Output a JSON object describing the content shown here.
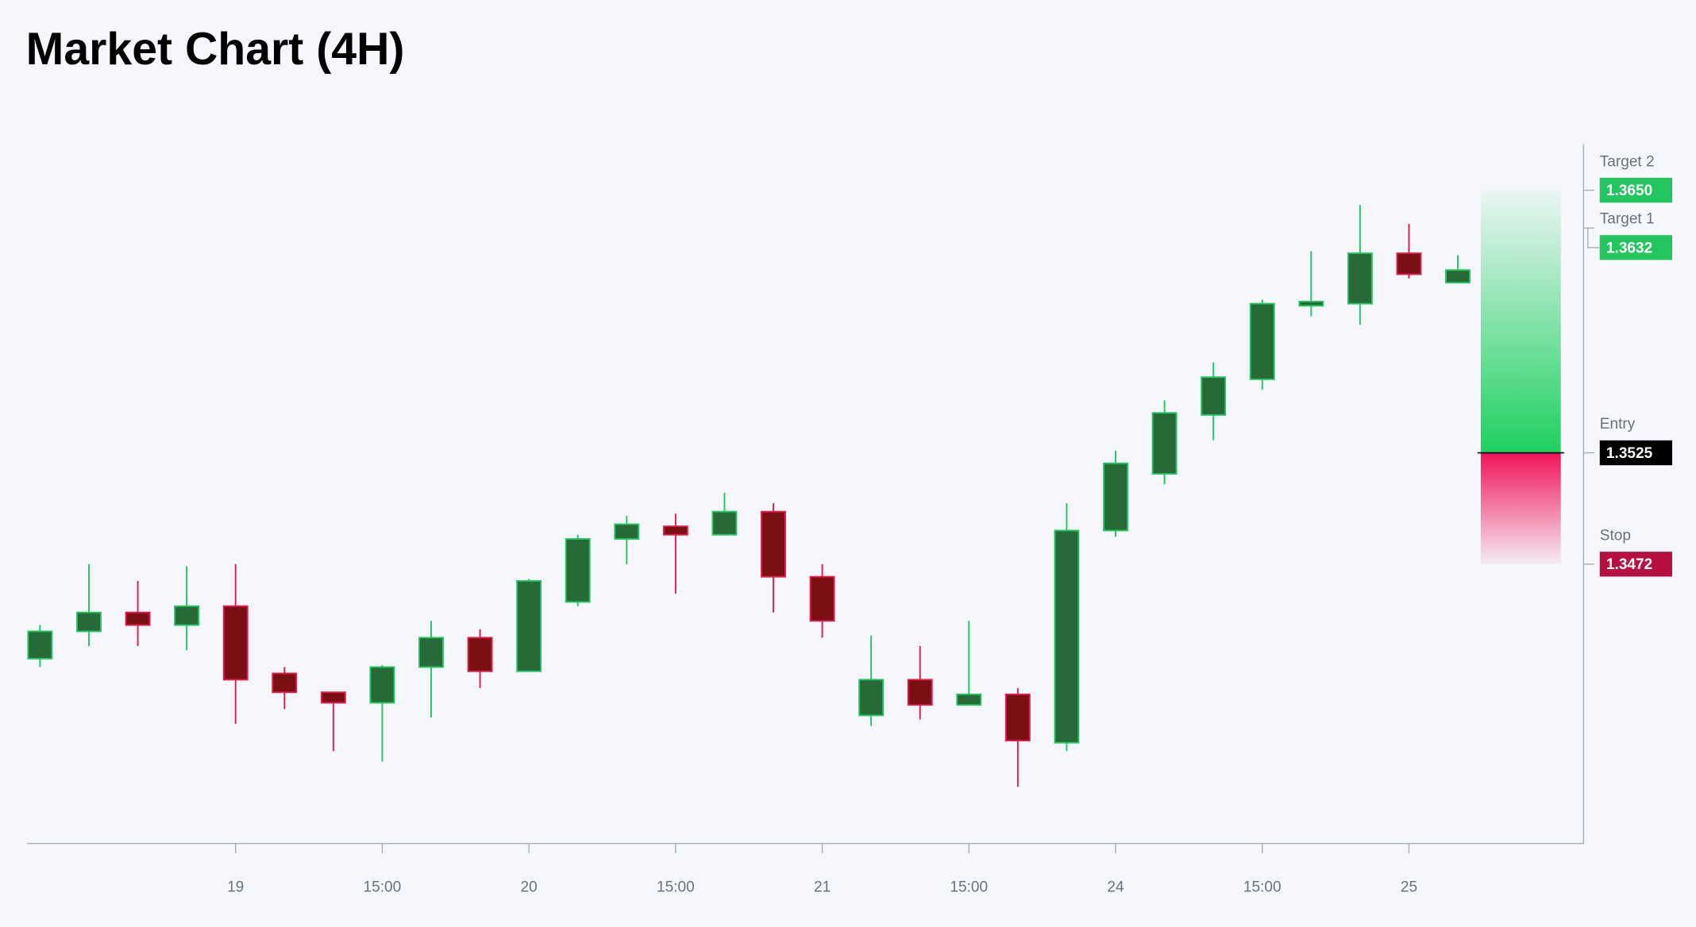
{
  "chart_data": {
    "type": "candlestick",
    "title": "Market Chart (4H)",
    "categories": [
      null,
      null,
      null,
      null,
      "19",
      null,
      null,
      "15:00",
      null,
      null,
      "20",
      null,
      null,
      "15:00",
      null,
      null,
      "21",
      null,
      null,
      "15:00",
      null,
      null,
      "24",
      null,
      null,
      "15:00",
      null,
      null,
      "25",
      null
    ],
    "open": [
      1.3427,
      1.344,
      1.3449,
      1.3443,
      1.3452,
      1.342,
      1.3411,
      1.3406,
      1.3423,
      1.3437,
      1.3421,
      1.3454,
      1.3484,
      1.349,
      1.3486,
      1.3497,
      1.3466,
      1.34,
      1.3417,
      1.3405,
      1.341,
      1.3387,
      1.3488,
      1.3515,
      1.3543,
      1.356,
      1.3595,
      1.3596,
      1.362,
      1.3606
    ],
    "high": [
      1.3443,
      1.3472,
      1.3464,
      1.3471,
      1.3472,
      1.3423,
      1.3411,
      1.3424,
      1.3445,
      1.3441,
      1.3465,
      1.3486,
      1.3495,
      1.3496,
      1.3506,
      1.3501,
      1.3472,
      1.3438,
      1.3433,
      1.3445,
      1.3413,
      1.3501,
      1.3526,
      1.355,
      1.3568,
      1.3598,
      1.3621,
      1.3643,
      1.3634,
      1.3619
    ],
    "low": [
      1.3423,
      1.3433,
      1.3433,
      1.3431,
      1.3396,
      1.3403,
      1.3383,
      1.3378,
      1.3399,
      1.3413,
      1.3421,
      1.3452,
      1.3472,
      1.3458,
      1.3486,
      1.3449,
      1.3437,
      1.3395,
      1.3398,
      1.3405,
      1.3366,
      1.3383,
      1.3485,
      1.351,
      1.3531,
      1.3555,
      1.359,
      1.3586,
      1.3608,
      1.3606
    ],
    "close": [
      1.344,
      1.3449,
      1.3443,
      1.3452,
      1.3417,
      1.3411,
      1.3406,
      1.3423,
      1.3437,
      1.3421,
      1.3464,
      1.3484,
      1.3491,
      1.3486,
      1.3497,
      1.3466,
      1.3445,
      1.3417,
      1.3405,
      1.341,
      1.3388,
      1.3488,
      1.352,
      1.3544,
      1.3561,
      1.3596,
      1.3597,
      1.362,
      1.361,
      1.3612
    ],
    "ylim": [
      1.3339,
      1.3672
    ],
    "up_color": "#22c55e",
    "up_fill": "#276a37",
    "down_color": "#e11d48",
    "down_fill": "#7a0f14",
    "levels": [
      {
        "name": "Target 2",
        "value": 1.365,
        "label": "1.3650",
        "color": "#22c55e"
      },
      {
        "name": "Target 1",
        "value": 1.3632,
        "label": "1.3632",
        "color": "#22c55e"
      },
      {
        "name": "Entry",
        "value": 1.3525,
        "label": "1.3525",
        "color": "#000000"
      },
      {
        "name": "Stop",
        "value": 1.3472,
        "label": "1.3472",
        "color": "#b5103f"
      }
    ]
  }
}
